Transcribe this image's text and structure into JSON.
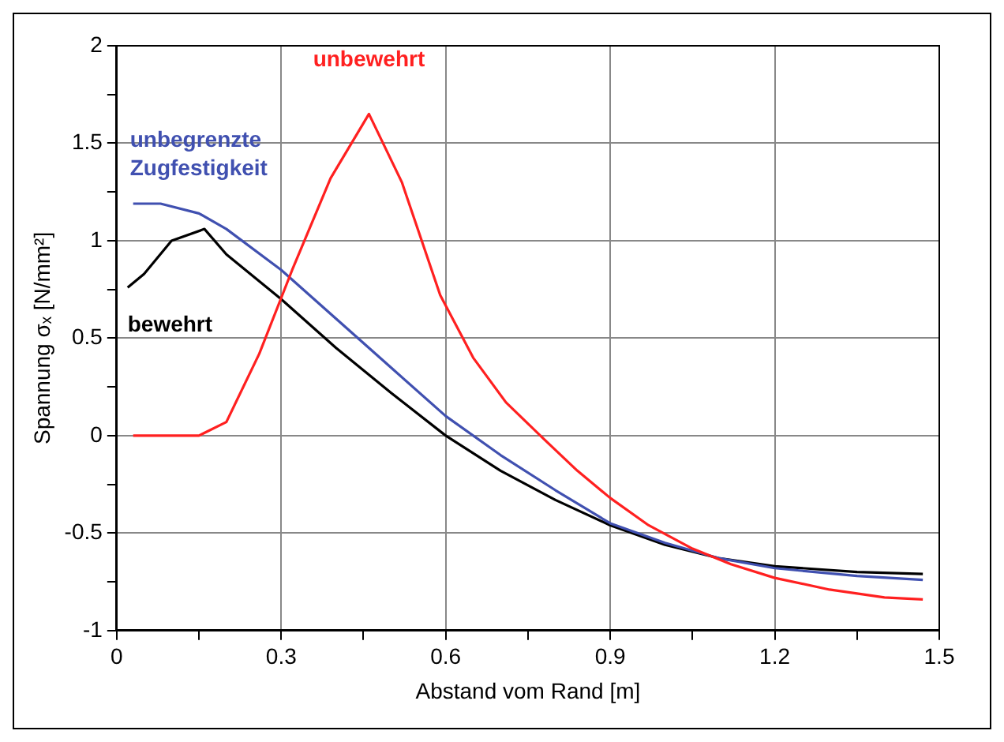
{
  "chart_data": {
    "type": "line",
    "xlabel": "Abstand vom Rand [m]",
    "ylabel": "Spannung σₓ [N/mm²]",
    "xlim": [
      0,
      1.5
    ],
    "xticks": [
      0,
      {
        "value": 0.15,
        "label": null
      },
      0.3,
      {
        "value": 0.45,
        "label": null
      },
      0.6,
      {
        "value": 0.75,
        "label": null
      },
      0.9,
      {
        "value": 1.05,
        "label": null
      },
      1.2,
      {
        "value": 1.35,
        "label": null
      },
      1.5
    ],
    "ylim": [
      -1,
      2
    ],
    "yticks": [
      -1,
      {
        "value": -0.75,
        "label": null
      },
      -0.5,
      {
        "value": -0.25,
        "label": null
      },
      0,
      {
        "value": 0.25,
        "label": null
      },
      0.5,
      {
        "value": 0.75,
        "label": null
      },
      1,
      {
        "value": 1.25,
        "label": null
      },
      1.5,
      {
        "value": 1.75,
        "label": null
      },
      2
    ],
    "grid": true,
    "legend": false,
    "marker": "none",
    "line_style": "solid",
    "series": [
      {
        "name": "unbewehrt",
        "color": "#ff2020",
        "x": [
          0.03,
          0.15,
          0.2,
          0.26,
          0.32,
          0.39,
          0.46,
          0.52,
          0.59,
          0.65,
          0.71,
          0.78,
          0.84,
          0.9,
          0.97,
          1.05,
          1.12,
          1.2,
          1.3,
          1.4,
          1.47
        ],
        "values": [
          0,
          0,
          0.07,
          0.42,
          0.85,
          1.32,
          1.65,
          1.3,
          0.72,
          0.4,
          0.17,
          -0.02,
          -0.18,
          -0.32,
          -0.46,
          -0.58,
          -0.66,
          -0.73,
          -0.79,
          -0.83,
          -0.84
        ]
      },
      {
        "name": "unbegrenzte Zugfestigkeit",
        "color": "#4050b0",
        "x": [
          0.03,
          0.08,
          0.15,
          0.2,
          0.3,
          0.4,
          0.5,
          0.6,
          0.7,
          0.8,
          0.9,
          1.0,
          1.1,
          1.2,
          1.35,
          1.47
        ],
        "values": [
          1.19,
          1.19,
          1.14,
          1.06,
          0.85,
          0.6,
          0.35,
          0.1,
          -0.1,
          -0.28,
          -0.45,
          -0.55,
          -0.63,
          -0.68,
          -0.72,
          -0.74
        ]
      },
      {
        "name": "bewehrt",
        "color": "#000000",
        "x": [
          0.02,
          0.05,
          0.1,
          0.16,
          0.2,
          0.3,
          0.4,
          0.5,
          0.6,
          0.7,
          0.8,
          0.9,
          1.0,
          1.1,
          1.2,
          1.35,
          1.47
        ],
        "values": [
          0.76,
          0.83,
          1.0,
          1.06,
          0.93,
          0.7,
          0.45,
          0.22,
          0.0,
          -0.18,
          -0.33,
          -0.46,
          -0.56,
          -0.63,
          -0.67,
          -0.7,
          -0.71
        ]
      }
    ]
  }
}
